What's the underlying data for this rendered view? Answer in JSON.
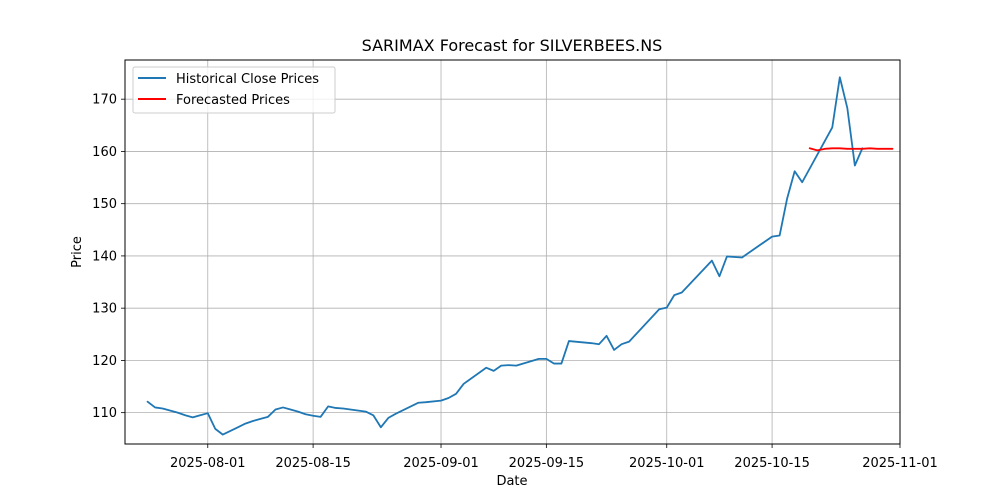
{
  "chart_data": {
    "type": "line",
    "title": "SARIMAX Forecast for SILVERBEES.NS",
    "xlabel": "Date",
    "ylabel": "Price",
    "xlim": [
      "2025-07-21",
      "2025-11-01"
    ],
    "ylim": [
      104,
      177.5
    ],
    "x_ticks": [
      "2025-08-01",
      "2025-08-15",
      "2025-09-01",
      "2025-09-15",
      "2025-10-01",
      "2025-10-15",
      "2025-11-01"
    ],
    "y_ticks": [
      110,
      120,
      130,
      140,
      150,
      160,
      170
    ],
    "grid": true,
    "legend_position": "top-left",
    "series": [
      {
        "name": "Historical Close Prices",
        "color": "#1f77b4",
        "points": [
          [
            "2025-07-24",
            112.1
          ],
          [
            "2025-07-25",
            111.0
          ],
          [
            "2025-07-26",
            110.8
          ],
          [
            "2025-07-28",
            110.0
          ],
          [
            "2025-07-29",
            109.5
          ],
          [
            "2025-07-30",
            109.1
          ],
          [
            "2025-07-31",
            109.5
          ],
          [
            "2025-08-01",
            109.9
          ],
          [
            "2025-08-02",
            106.9
          ],
          [
            "2025-08-03",
            105.8
          ],
          [
            "2025-08-04",
            106.5
          ],
          [
            "2025-08-05",
            107.2
          ],
          [
            "2025-08-06",
            107.9
          ],
          [
            "2025-08-07",
            108.4
          ],
          [
            "2025-08-08",
            108.8
          ],
          [
            "2025-08-09",
            109.2
          ],
          [
            "2025-08-10",
            110.6
          ],
          [
            "2025-08-11",
            111.0
          ],
          [
            "2025-08-12",
            110.6
          ],
          [
            "2025-08-13",
            110.2
          ],
          [
            "2025-08-14",
            109.7
          ],
          [
            "2025-08-15",
            109.4
          ],
          [
            "2025-08-16",
            109.2
          ],
          [
            "2025-08-17",
            111.2
          ],
          [
            "2025-08-18",
            110.9
          ],
          [
            "2025-08-19",
            110.8
          ],
          [
            "2025-08-22",
            110.2
          ],
          [
            "2025-08-23",
            109.5
          ],
          [
            "2025-08-24",
            107.2
          ],
          [
            "2025-08-25",
            109.0
          ],
          [
            "2025-08-26",
            109.8
          ],
          [
            "2025-08-29",
            111.9
          ],
          [
            "2025-08-30",
            112.0
          ],
          [
            "2025-09-01",
            112.3
          ],
          [
            "2025-09-02",
            112.8
          ],
          [
            "2025-09-03",
            113.6
          ],
          [
            "2025-09-04",
            115.5
          ],
          [
            "2025-09-07",
            118.6
          ],
          [
            "2025-09-08",
            118.0
          ],
          [
            "2025-09-09",
            119.0
          ],
          [
            "2025-09-10",
            119.1
          ],
          [
            "2025-09-11",
            119.0
          ],
          [
            "2025-09-14",
            120.3
          ],
          [
            "2025-09-15",
            120.3
          ],
          [
            "2025-09-16",
            119.4
          ],
          [
            "2025-09-17",
            119.4
          ],
          [
            "2025-09-18",
            123.7
          ],
          [
            "2025-09-21",
            123.3
          ],
          [
            "2025-09-22",
            123.1
          ],
          [
            "2025-09-23",
            124.7
          ],
          [
            "2025-09-24",
            122.0
          ],
          [
            "2025-09-25",
            123.1
          ],
          [
            "2025-09-26",
            123.6
          ],
          [
            "2025-09-30",
            129.8
          ],
          [
            "2025-10-01",
            130.1
          ],
          [
            "2025-10-02",
            132.5
          ],
          [
            "2025-10-03",
            133.0
          ],
          [
            "2025-10-07",
            139.1
          ],
          [
            "2025-10-08",
            136.1
          ],
          [
            "2025-10-09",
            139.9
          ],
          [
            "2025-10-11",
            139.7
          ],
          [
            "2025-10-15",
            143.7
          ],
          [
            "2025-10-16",
            143.9
          ],
          [
            "2025-10-17",
            151.0
          ],
          [
            "2025-10-18",
            156.2
          ],
          [
            "2025-10-19",
            154.1
          ],
          [
            "2025-10-23",
            164.6
          ],
          [
            "2025-10-24",
            174.2
          ],
          [
            "2025-10-25",
            168.3
          ],
          [
            "2025-10-26",
            157.3
          ],
          [
            "2025-10-27",
            160.6
          ]
        ]
      },
      {
        "name": "Forecasted Prices",
        "color": "#ff0000",
        "points": [
          [
            "2025-10-20",
            160.6
          ],
          [
            "2025-10-21",
            160.2
          ],
          [
            "2025-10-22",
            160.5
          ],
          [
            "2025-10-23",
            160.6
          ],
          [
            "2025-10-24",
            160.6
          ],
          [
            "2025-10-25",
            160.5
          ],
          [
            "2025-10-26",
            160.5
          ],
          [
            "2025-10-27",
            160.5
          ],
          [
            "2025-10-28",
            160.6
          ],
          [
            "2025-10-29",
            160.5
          ],
          [
            "2025-10-30",
            160.5
          ],
          [
            "2025-10-31",
            160.5
          ]
        ]
      }
    ]
  }
}
